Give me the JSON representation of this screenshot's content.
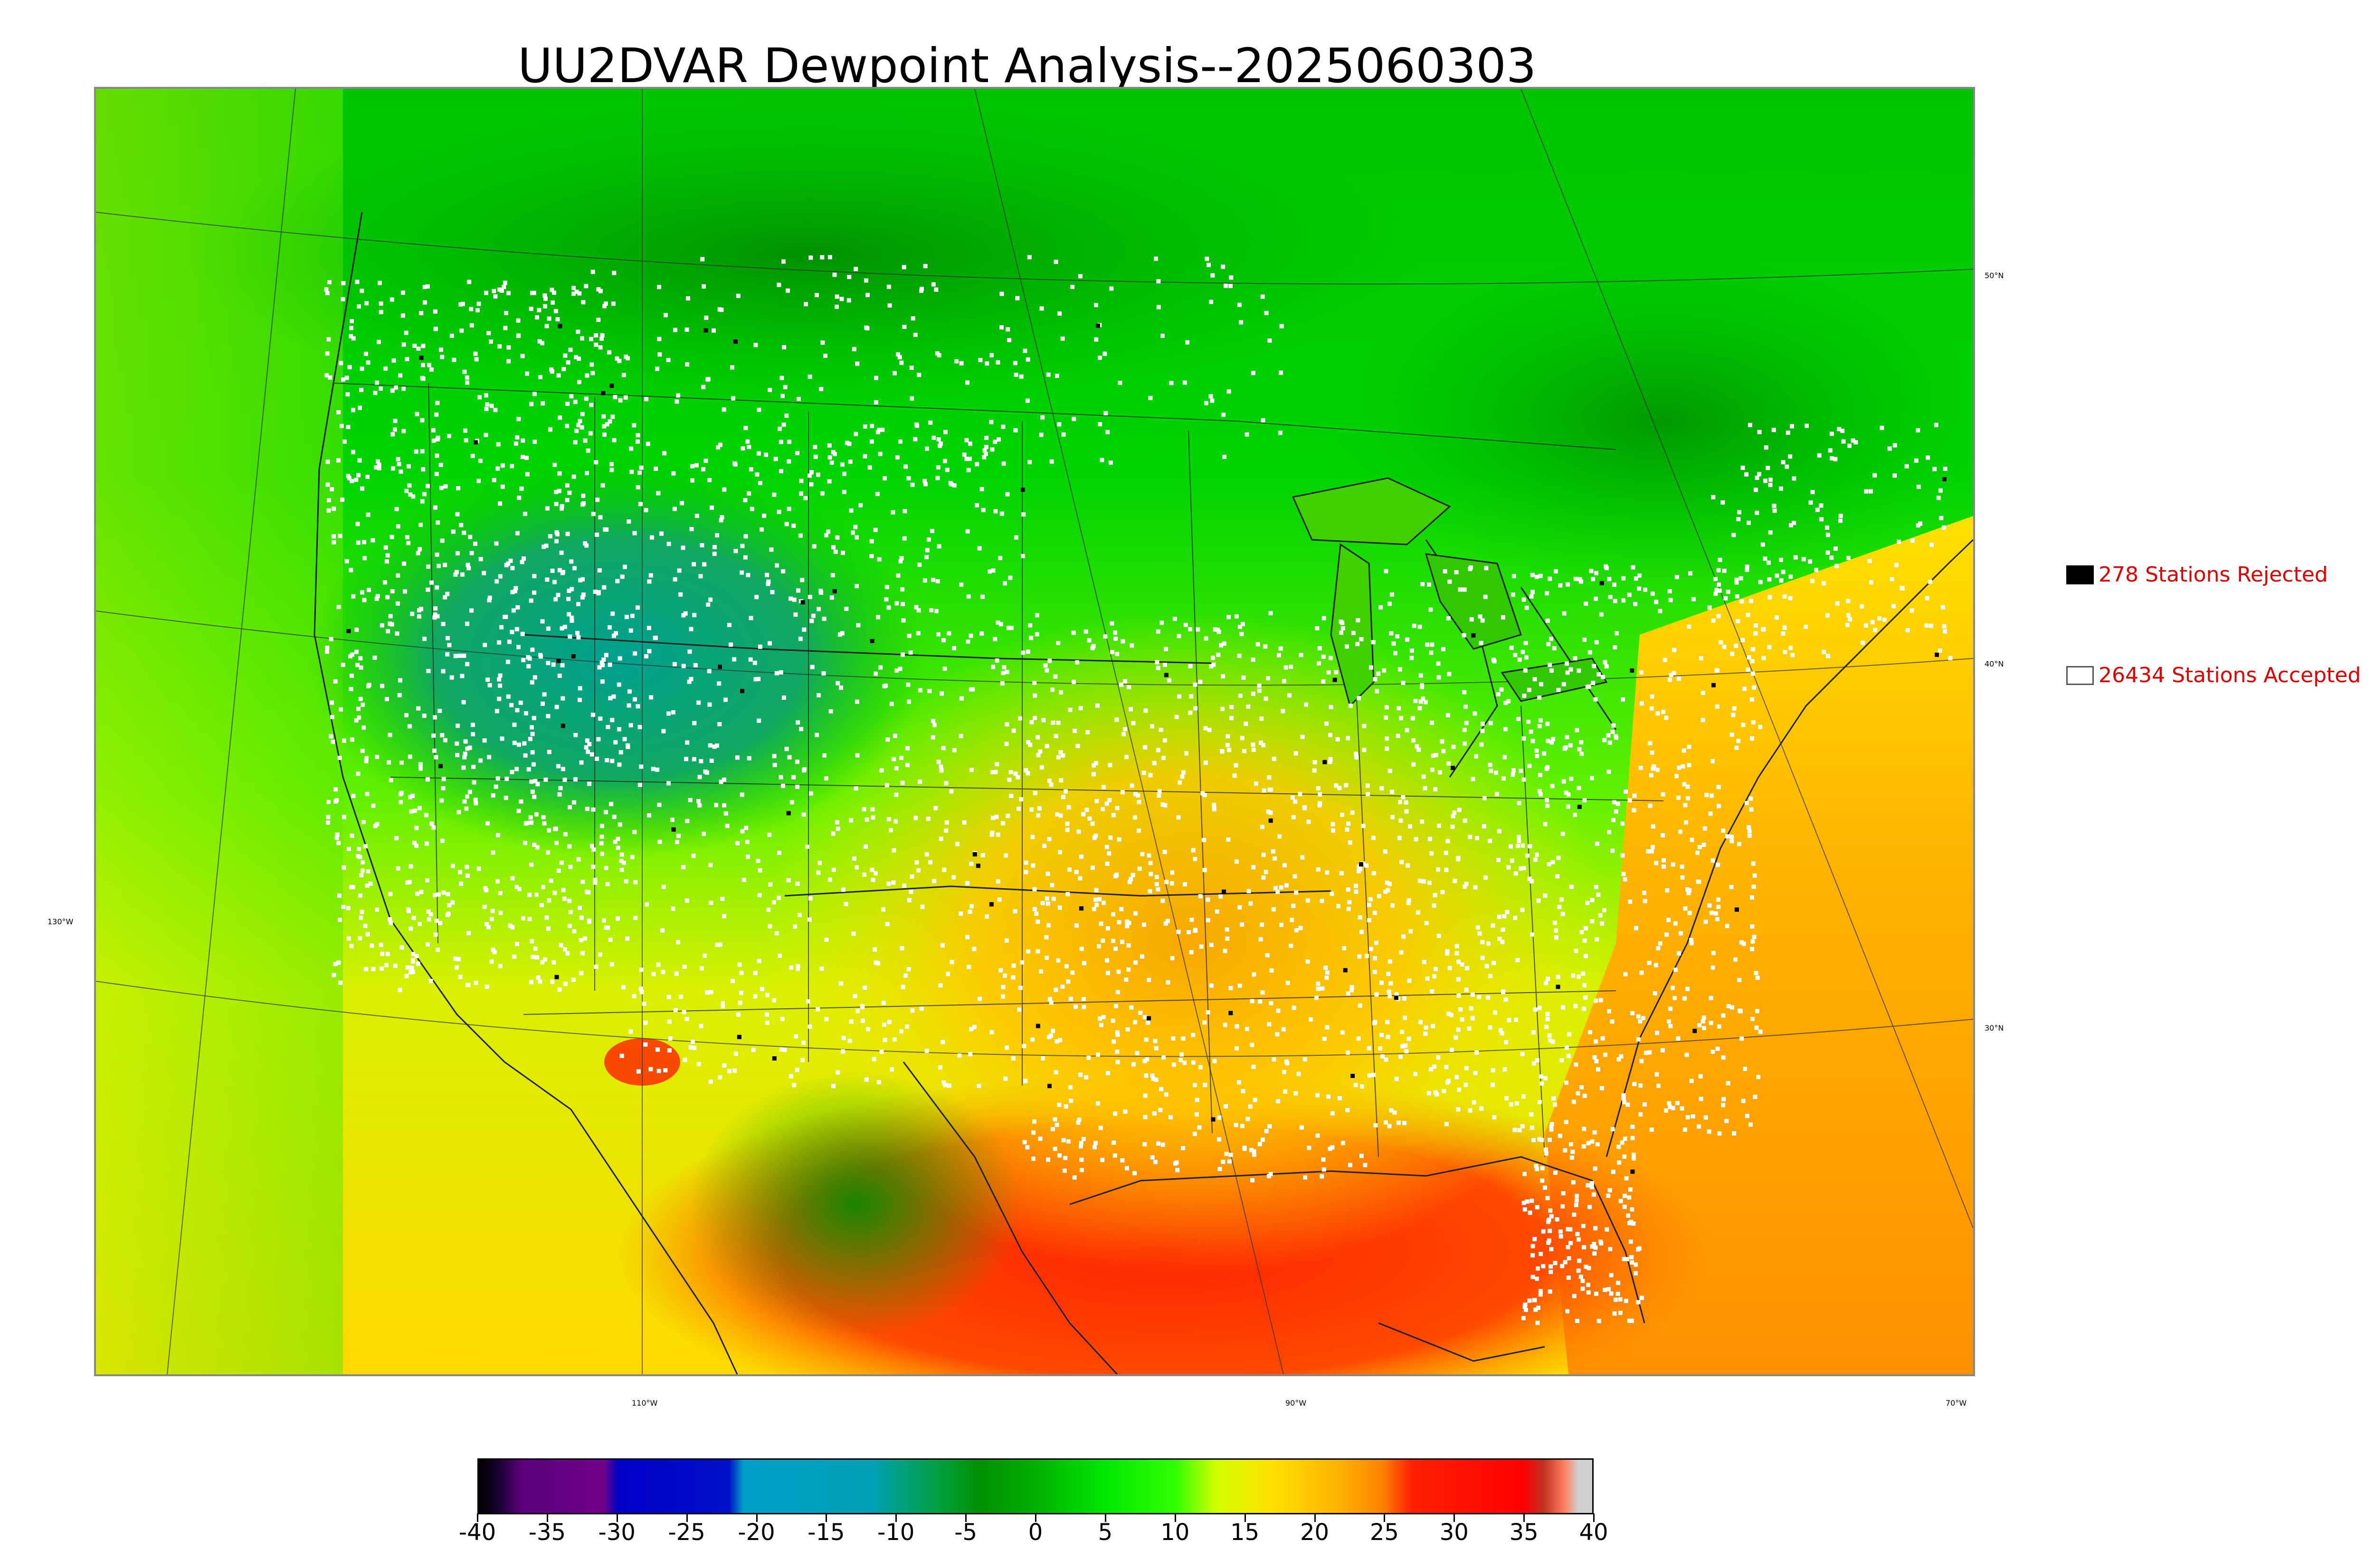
{
  "title": "UU2DVAR Dewpoint Analysis--2025060303",
  "legend": {
    "rejected": {
      "count_label": "278 Stations Rejected",
      "swatch_color": "#000000"
    },
    "accepted": {
      "count_label": "26434 Stations Accepted",
      "swatch_color": "#ffffff"
    }
  },
  "map": {
    "lat_labels": [
      "50°N",
      "40°N",
      "30°N"
    ],
    "lon_labels": [
      "130°W",
      "110°W",
      "90°W",
      "70°W"
    ]
  },
  "colorbar": {
    "ticks": [
      "-40",
      "-35",
      "-30",
      "-25",
      "-20",
      "-15",
      "-10",
      "-5",
      "0",
      "5",
      "10",
      "15",
      "20",
      "25",
      "30",
      "35",
      "40"
    ],
    "min": -40,
    "max": 40,
    "stops": [
      {
        "v": -40,
        "c": "#000000"
      },
      {
        "v": -38.5,
        "c": "#1a0033"
      },
      {
        "v": -37,
        "c": "#5a007a"
      },
      {
        "v": -31,
        "c": "#70008a"
      },
      {
        "v": -30,
        "c": "#0000c8"
      },
      {
        "v": -22,
        "c": "#0010c8"
      },
      {
        "v": -21,
        "c": "#00a0c8"
      },
      {
        "v": -12,
        "c": "#00a0b8"
      },
      {
        "v": -7,
        "c": "#00a040"
      },
      {
        "v": -4,
        "c": "#009000"
      },
      {
        "v": 0,
        "c": "#00b000"
      },
      {
        "v": 5,
        "c": "#00e800"
      },
      {
        "v": 10,
        "c": "#30ff00"
      },
      {
        "v": 13,
        "c": "#d0ff00"
      },
      {
        "v": 17,
        "c": "#ffe000"
      },
      {
        "v": 22,
        "c": "#ffb000"
      },
      {
        "v": 25,
        "c": "#ff8000"
      },
      {
        "v": 27,
        "c": "#ff2000"
      },
      {
        "v": 35,
        "c": "#ff0000"
      },
      {
        "v": 36.5,
        "c": "#c03020"
      },
      {
        "v": 38,
        "c": "#ff8060"
      },
      {
        "v": 39,
        "c": "#d0d0d0"
      },
      {
        "v": 40,
        "c": "#d0d0d0"
      }
    ]
  },
  "colors": {
    "map_north": "#00c800",
    "map_ocean_east": "#ffa000",
    "gulf": "#ff3000",
    "stations": "#ffffff",
    "rejected": "#000000",
    "borders": "#202020"
  }
}
